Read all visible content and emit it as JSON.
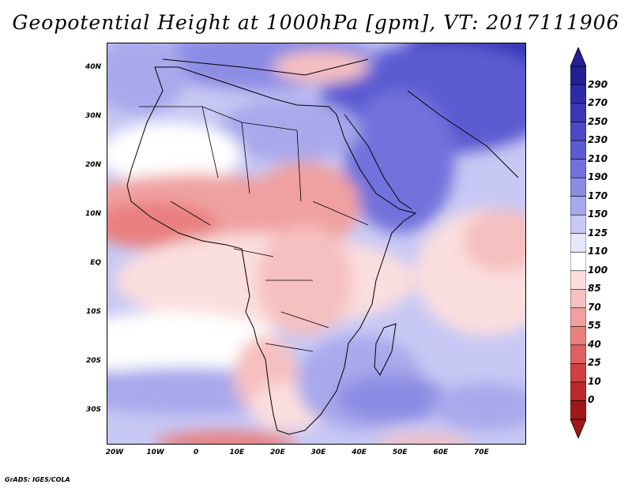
{
  "title": "Geopotential Height at 1000hPa [gpm], VT: 2017111906",
  "footer": "GrADS: IGES/COLA",
  "lat_labels": [
    "40N",
    "30N",
    "20N",
    "10N",
    "EQ",
    "10S",
    "20S",
    "30S"
  ],
  "lon_labels": [
    "20W",
    "10W",
    "0",
    "10E",
    "20E",
    "30E",
    "40E",
    "50E",
    "60E",
    "70E"
  ],
  "colorbar": {
    "levels": [
      "290",
      "270",
      "250",
      "230",
      "210",
      "190",
      "170",
      "150",
      "125",
      "110",
      "100",
      "85",
      "70",
      "55",
      "40",
      "25",
      "10",
      "0"
    ],
    "colors": [
      "#241f96",
      "#2c2ca8",
      "#3838b8",
      "#4a4ac6",
      "#5c5cd2",
      "#7272dc",
      "#8c8ce4",
      "#a8a8ec",
      "#c8c8f4",
      "#e6e6fb",
      "#ffffff",
      "#fbdede",
      "#f6c0c0",
      "#f0a0a0",
      "#e98080",
      "#e06060",
      "#d04040",
      "#bb2a2a",
      "#a01818"
    ]
  },
  "icons": {
    "arrow_up": "colorbar-max-arrow-icon",
    "arrow_down": "colorbar-min-arrow-icon"
  }
}
